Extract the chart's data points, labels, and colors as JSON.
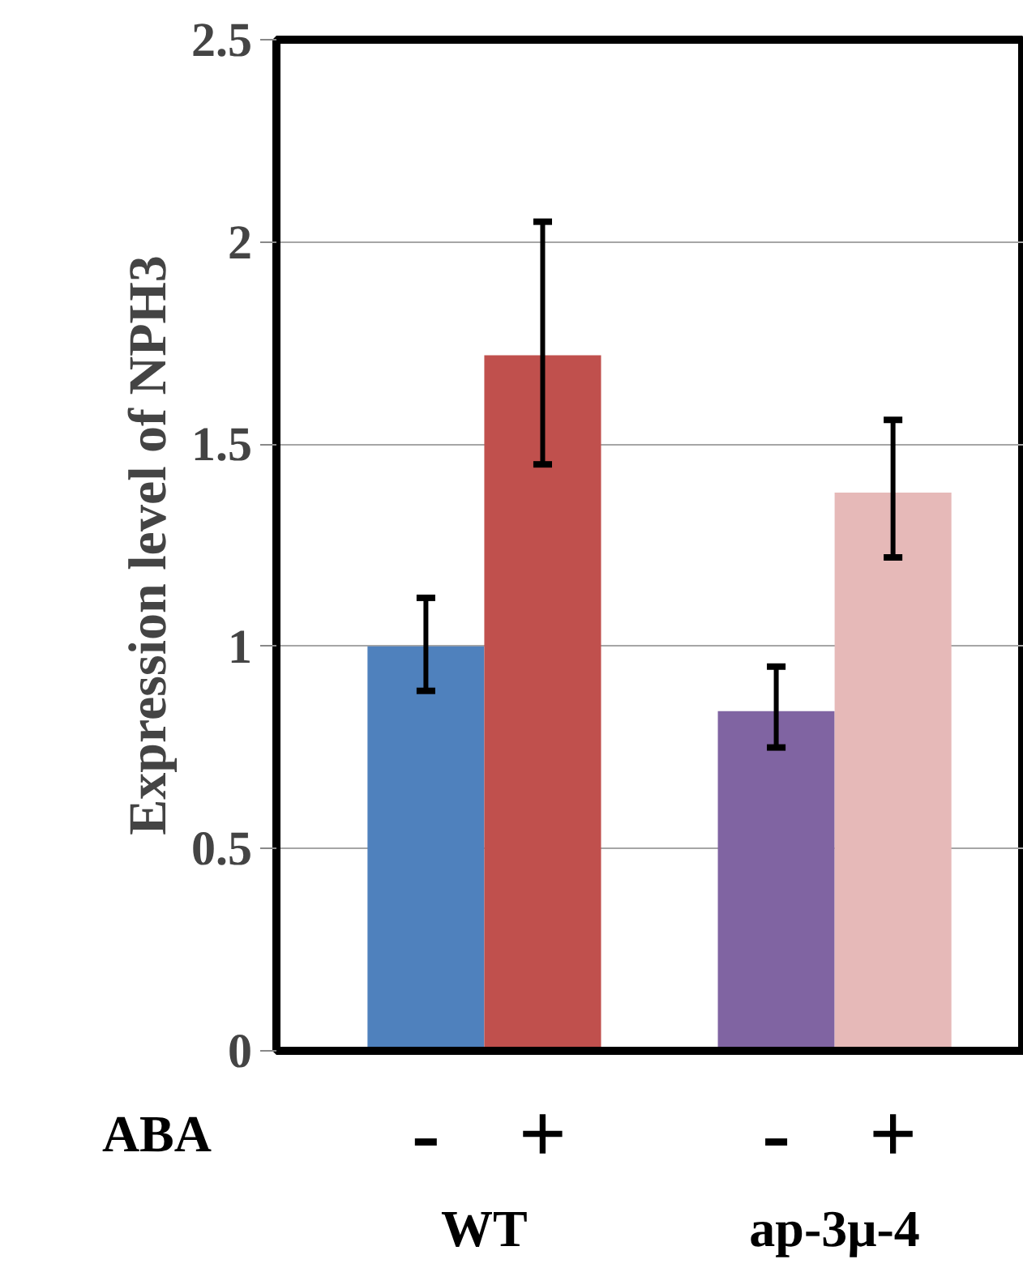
{
  "chart_data": {
    "type": "bar",
    "ylabel": "Expression level of NPH3",
    "categories": [
      "-",
      "+",
      "-",
      "+"
    ],
    "values": [
      1.0,
      1.72,
      0.84,
      1.38
    ],
    "colors": [
      "#4f81bd",
      "#c0504d",
      "#8064a2",
      "#e6b9b8"
    ],
    "errors": [
      [
        0.89,
        1.12
      ],
      [
        1.45,
        2.05
      ],
      [
        0.75,
        0.95
      ],
      [
        1.22,
        1.56
      ]
    ],
    "ylim": [
      0,
      2.5
    ],
    "yticks": [
      0,
      0.5,
      1,
      1.5,
      2,
      2.5
    ],
    "grid": "y",
    "annotations": [
      "ABA",
      "WT",
      "ap-3μ-4"
    ]
  }
}
